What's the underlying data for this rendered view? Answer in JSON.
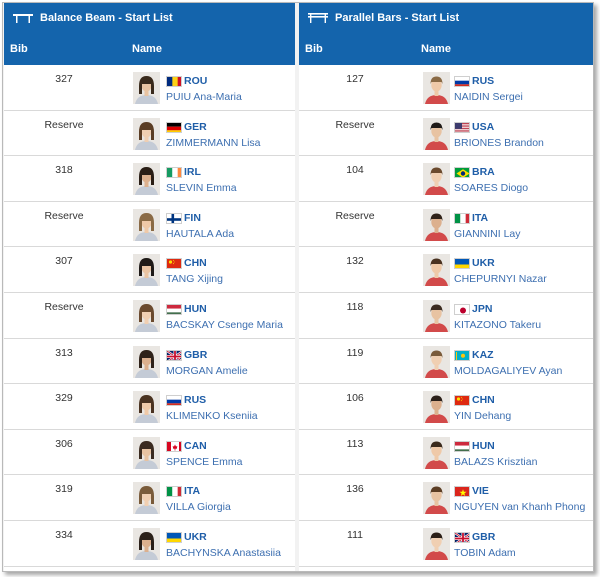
{
  "left": {
    "title": "Balance Beam - Start List",
    "col_bib": "Bib",
    "col_name": "Name",
    "rows": [
      {
        "bib": "327",
        "noc": "ROU",
        "name": "PUIU Ana-Maria",
        "flag": "rou"
      },
      {
        "bib": "Reserve",
        "noc": "GER",
        "name": "ZIMMERMANN Lisa",
        "flag": "ger"
      },
      {
        "bib": "318",
        "noc": "IRL",
        "name": "SLEVIN Emma",
        "flag": "irl"
      },
      {
        "bib": "Reserve",
        "noc": "FIN",
        "name": "HAUTALA Ada",
        "flag": "fin"
      },
      {
        "bib": "307",
        "noc": "CHN",
        "name": "TANG Xijing",
        "flag": "chn"
      },
      {
        "bib": "Reserve",
        "noc": "HUN",
        "name": "BACSKAY Csenge Maria",
        "flag": "hun"
      },
      {
        "bib": "313",
        "noc": "GBR",
        "name": "MORGAN Amelie",
        "flag": "gbr"
      },
      {
        "bib": "329",
        "noc": "RUS",
        "name": "KLIMENKO Kseniia",
        "flag": "rus"
      },
      {
        "bib": "306",
        "noc": "CAN",
        "name": "SPENCE Emma",
        "flag": "can"
      },
      {
        "bib": "319",
        "noc": "ITA",
        "name": "VILLA Giorgia",
        "flag": "ita"
      },
      {
        "bib": "334",
        "noc": "UKR",
        "name": "BACHYNSKA Anastasiia",
        "flag": "ukr"
      }
    ]
  },
  "right": {
    "title": "Parallel Bars - Start List",
    "col_bib": "Bib",
    "col_name": "Name",
    "rows": [
      {
        "bib": "127",
        "noc": "RUS",
        "name": "NAIDIN Sergei",
        "flag": "rus"
      },
      {
        "bib": "Reserve",
        "noc": "USA",
        "name": "BRIONES Brandon",
        "flag": "usa"
      },
      {
        "bib": "104",
        "noc": "BRA",
        "name": "SOARES Diogo",
        "flag": "bra"
      },
      {
        "bib": "Reserve",
        "noc": "ITA",
        "name": "GIANNINI Lay",
        "flag": "ita"
      },
      {
        "bib": "132",
        "noc": "UKR",
        "name": "CHEPURNYI Nazar",
        "flag": "ukr"
      },
      {
        "bib": "118",
        "noc": "JPN",
        "name": "KITAZONO Takeru",
        "flag": "jpn"
      },
      {
        "bib": "119",
        "noc": "KAZ",
        "name": "MOLDAGALIYEV Ayan",
        "flag": "kaz"
      },
      {
        "bib": "106",
        "noc": "CHN",
        "name": "YIN Dehang",
        "flag": "chn"
      },
      {
        "bib": "113",
        "noc": "HUN",
        "name": "BALAZS Krisztian",
        "flag": "hun"
      },
      {
        "bib": "136",
        "noc": "VIE",
        "name": "NGUYEN van Khanh Phong",
        "flag": "vie"
      },
      {
        "bib": "111",
        "noc": "GBR",
        "name": "TOBIN Adam",
        "flag": "gbr"
      }
    ]
  },
  "colors": {
    "header_bg": "#1464ac",
    "header_text": "#ffffff",
    "noc_text": "#1f5ea8",
    "name_text": "#3d6fb0"
  },
  "icons": {
    "left_title": "balance-beam-icon",
    "right_title": "parallel-bars-icon"
  }
}
